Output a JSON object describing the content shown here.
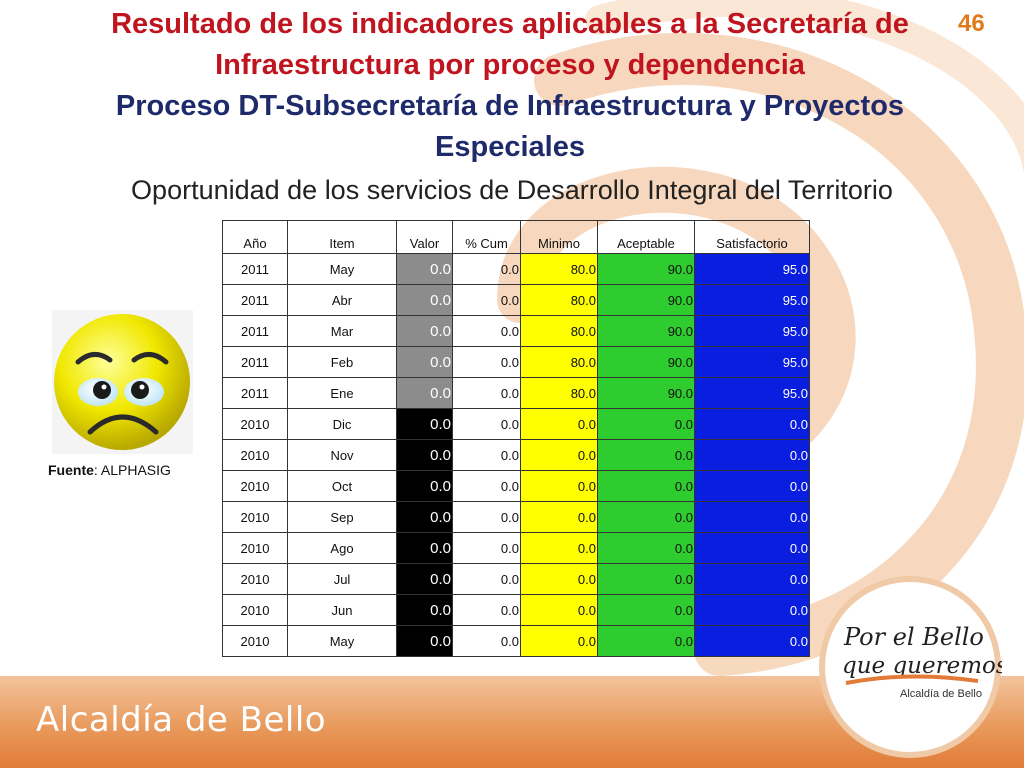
{
  "page_number": "46",
  "title_line1": "Resultado de los indicadores aplicables a la Secretaría de",
  "title_line2": "Infraestructura  por proceso y dependencia",
  "process_line1": "Proceso DT-Subsecretaría de Infraestructura y Proyectos",
  "process_line2": "Especiales",
  "subtitle": "Oportunidad de los servicios de Desarrollo Integral del Territorio",
  "table": {
    "headers": [
      "Año",
      "Item",
      "Valor",
      "% Cum",
      "Minimo",
      "Aceptable",
      "Satisfactorio"
    ],
    "rows": [
      {
        "anio": "2011",
        "item": "May",
        "valor": "0.0",
        "cum": "0.0",
        "minimo": "80.0",
        "aceptable": "90.0",
        "satisfactorio": "95.0",
        "valor_color": "gray"
      },
      {
        "anio": "2011",
        "item": "Abr",
        "valor": "0.0",
        "cum": "0.0",
        "minimo": "80.0",
        "aceptable": "90.0",
        "satisfactorio": "95.0",
        "valor_color": "gray"
      },
      {
        "anio": "2011",
        "item": "Mar",
        "valor": "0.0",
        "cum": "0.0",
        "minimo": "80.0",
        "aceptable": "90.0",
        "satisfactorio": "95.0",
        "valor_color": "gray"
      },
      {
        "anio": "2011",
        "item": "Feb",
        "valor": "0.0",
        "cum": "0.0",
        "minimo": "80.0",
        "aceptable": "90.0",
        "satisfactorio": "95.0",
        "valor_color": "gray"
      },
      {
        "anio": "2011",
        "item": "Ene",
        "valor": "0.0",
        "cum": "0.0",
        "minimo": "80.0",
        "aceptable": "90.0",
        "satisfactorio": "95.0",
        "valor_color": "gray"
      },
      {
        "anio": "2010",
        "item": "Dic",
        "valor": "0.0",
        "cum": "0.0",
        "minimo": "0.0",
        "aceptable": "0.0",
        "satisfactorio": "0.0",
        "valor_color": "black"
      },
      {
        "anio": "2010",
        "item": "Nov",
        "valor": "0.0",
        "cum": "0.0",
        "minimo": "0.0",
        "aceptable": "0.0",
        "satisfactorio": "0.0",
        "valor_color": "black"
      },
      {
        "anio": "2010",
        "item": "Oct",
        "valor": "0.0",
        "cum": "0.0",
        "minimo": "0.0",
        "aceptable": "0.0",
        "satisfactorio": "0.0",
        "valor_color": "black"
      },
      {
        "anio": "2010",
        "item": "Sep",
        "valor": "0.0",
        "cum": "0.0",
        "minimo": "0.0",
        "aceptable": "0.0",
        "satisfactorio": "0.0",
        "valor_color": "black"
      },
      {
        "anio": "2010",
        "item": "Ago",
        "valor": "0.0",
        "cum": "0.0",
        "minimo": "0.0",
        "aceptable": "0.0",
        "satisfactorio": "0.0",
        "valor_color": "black"
      },
      {
        "anio": "2010",
        "item": "Jul",
        "valor": "0.0",
        "cum": "0.0",
        "minimo": "0.0",
        "aceptable": "0.0",
        "satisfactorio": "0.0",
        "valor_color": "black"
      },
      {
        "anio": "2010",
        "item": "Jun",
        "valor": "0.0",
        "cum": "0.0",
        "minimo": "0.0",
        "aceptable": "0.0",
        "satisfactorio": "0.0",
        "valor_color": "black"
      },
      {
        "anio": "2010",
        "item": "May",
        "valor": "0.0",
        "cum": "0.0",
        "minimo": "0.0",
        "aceptable": "0.0",
        "satisfactorio": "0.0",
        "valor_color": "black"
      }
    ]
  },
  "fuente_label": "Fuente",
  "fuente_value": ": ALPHASIG",
  "footer_text": "Alcaldía de Bello",
  "logo": {
    "line1": "Por el Bello",
    "line2": "que queremos",
    "line3": "Alcaldía de Bello"
  },
  "icons": {
    "status": "sad-face-icon"
  },
  "colors": {
    "title_red": "#c0141e",
    "title_blue": "#1f2a6b",
    "minimo": "#ffff00",
    "aceptable": "#2fcc2f",
    "satisfactorio": "#0a1ee0",
    "valor_gray": "#8c8c8c",
    "valor_black": "#000000",
    "accent_orange": "#e27b38"
  }
}
